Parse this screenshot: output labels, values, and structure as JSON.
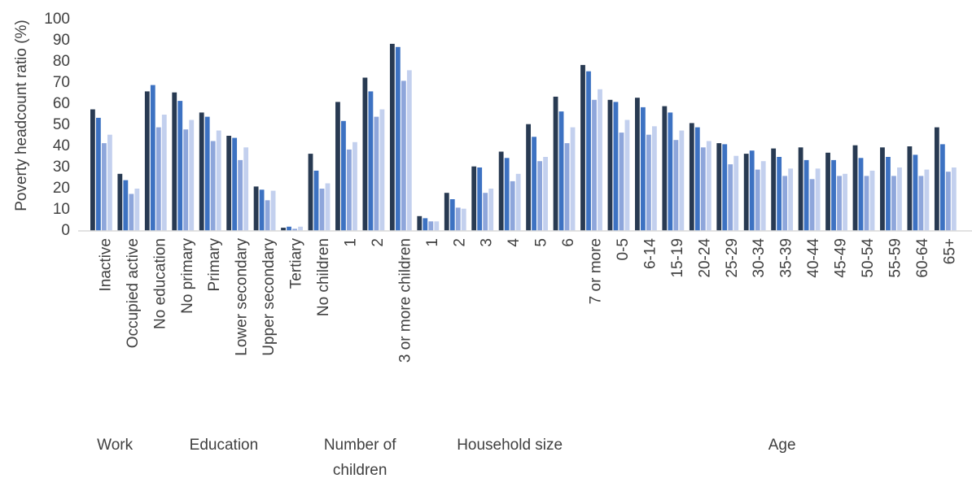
{
  "chart_data": {
    "type": "bar",
    "ylabel": "Poverty headcount ratio (%)",
    "ylim": [
      0,
      100
    ],
    "yticks": [
      0,
      10,
      20,
      30,
      40,
      50,
      60,
      70,
      80,
      90,
      100
    ],
    "grid": false,
    "legend": "none",
    "colors": [
      "#283a52",
      "#3d72c2",
      "#8ea6db",
      "#c3d0ee"
    ],
    "categories": [
      "Inactive",
      "Occupied active",
      "No education",
      "No primary",
      "Primary",
      "Lower secondary",
      "Upper secondary",
      "Tertiary",
      "No children",
      "1",
      "2",
      "3 or more children",
      "1",
      "2",
      "3",
      "4",
      "5",
      "6",
      "7 or more",
      "0-5",
      "6-14",
      "15-19",
      "20-24",
      "25-29",
      "30-34",
      "35-39",
      "40-44",
      "45-49",
      "50-54",
      "55-59",
      "60-64",
      "65+"
    ],
    "groups": [
      {
        "label": "Work",
        "start": 0,
        "end": 1
      },
      {
        "label": "Education",
        "start": 2,
        "end": 7
      },
      {
        "label": "Number of children",
        "start": 8,
        "end": 11
      },
      {
        "label": "Household size",
        "start": 12,
        "end": 18
      },
      {
        "label": "Age",
        "start": 19,
        "end": 31
      }
    ],
    "series": [
      {
        "values": [
          57.5,
          27,
          66,
          65.5,
          56,
          45,
          21,
          1.5,
          36.5,
          61,
          72.5,
          88.5,
          7,
          18,
          30.5,
          37.5,
          50.5,
          63.5,
          78.5,
          62,
          63,
          59,
          51,
          41.5,
          36.5,
          39,
          39.5,
          37,
          40.5,
          39.5,
          40,
          49
        ]
      },
      {
        "values": [
          53.5,
          24,
          69,
          61.5,
          54,
          44,
          19.5,
          2,
          28.5,
          52,
          66,
          87,
          6,
          15,
          30,
          34.5,
          44.5,
          56.5,
          75.5,
          61,
          58.5,
          56,
          49,
          41,
          38,
          35,
          33.5,
          33.5,
          34.5,
          35,
          36,
          41
        ]
      },
      {
        "values": [
          41.5,
          17.5,
          49,
          48,
          42.5,
          33.5,
          14.5,
          1,
          20,
          38.5,
          54,
          71,
          4.5,
          11,
          18,
          23.5,
          33,
          41.5,
          62,
          46.5,
          45.5,
          43,
          39.5,
          31.5,
          29,
          26,
          24.5,
          26,
          26,
          26,
          26,
          28
        ]
      },
      {
        "values": [
          45.5,
          20,
          55,
          52.5,
          47.5,
          39.5,
          19,
          2,
          22.5,
          42,
          57.5,
          76,
          4.5,
          10.5,
          20,
          27,
          35,
          49,
          67,
          52.5,
          49.5,
          47.5,
          42.5,
          35.5,
          33,
          29.5,
          29.5,
          27,
          28.5,
          30,
          29,
          30
        ]
      }
    ]
  }
}
